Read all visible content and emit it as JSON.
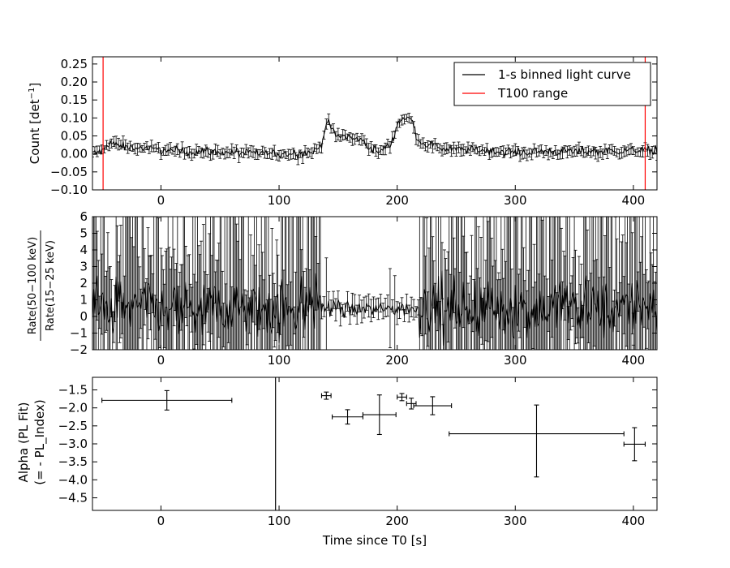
{
  "chart_data": [
    {
      "type": "line",
      "xlabel": "",
      "ylabel": "Count [det⁻¹]",
      "xlim": [
        -58,
        420
      ],
      "ylim": [
        -0.1,
        0.27
      ],
      "x_ticks": [
        0,
        100,
        200,
        300,
        400
      ],
      "y_ticks": [
        -0.1,
        -0.05,
        0.0,
        0.05,
        0.1,
        0.15,
        0.2,
        0.25
      ],
      "y_tick_labels": [
        "−0.10",
        "−0.05",
        "0.00",
        "0.05",
        "0.10",
        "0.15",
        "0.20",
        "0.25"
      ],
      "legend_position": "top-right",
      "series": [
        {
          "name": "1-s binned light curve",
          "color": "#000000",
          "profile_x": [
            -58,
            -48,
            -45,
            -42,
            -30,
            0,
            100,
            130,
            136,
            140,
            143,
            148,
            155,
            165,
            170,
            178,
            185,
            195,
            200,
            204,
            212,
            218,
            222,
            240,
            300,
            420
          ],
          "profile_y": [
            0.0,
            0.01,
            0.03,
            0.03,
            0.02,
            0.01,
            0.0,
            0.005,
            0.03,
            0.085,
            0.08,
            0.05,
            0.05,
            0.04,
            0.04,
            0.015,
            0.005,
            0.03,
            0.08,
            0.1,
            0.095,
            0.04,
            0.03,
            0.015,
            0.005,
            0.01
          ],
          "typical_error": 0.013
        },
        {
          "name": "T100 range",
          "color": "#ff0000",
          "vlines": [
            -49,
            410
          ]
        }
      ]
    },
    {
      "type": "line",
      "xlabel": "",
      "ylabel": "Rate(50−100 keV) / Rate(15−25 keV)",
      "xlim": [
        -58,
        420
      ],
      "ylim": [
        -2,
        6
      ],
      "x_ticks": [
        0,
        100,
        200,
        300,
        400
      ],
      "y_ticks": [
        -2,
        -1,
        0,
        1,
        2,
        3,
        4,
        5,
        6
      ],
      "y_tick_labels": [
        "−2",
        "−1",
        "0",
        "1",
        "2",
        "3",
        "4",
        "5",
        "6"
      ],
      "series": [
        {
          "name": "",
          "quiet_region": [
            136,
            218
          ],
          "typical_value": 0.5
        }
      ]
    },
    {
      "type": "scatter",
      "xlabel": "Time since T0 [s]",
      "ylabel": "Alpha (PL Fit)\n(= - PL_Index)",
      "xlim": [
        -58,
        420
      ],
      "ylim": [
        -4.85,
        -1.15
      ],
      "x_ticks": [
        0,
        100,
        200,
        300,
        400
      ],
      "x_tick_labels": [
        "0",
        "100",
        "200",
        "300",
        "400"
      ],
      "y_ticks": [
        -4.5,
        -4.0,
        -3.5,
        -3.0,
        -2.5,
        -2.0,
        -1.5
      ],
      "y_tick_labels": [
        "−4.5",
        "−4.0",
        "−3.5",
        "−3.0",
        "−2.5",
        "−2.0",
        "−1.5"
      ],
      "vlines": [
        97
      ],
      "points": [
        {
          "x": 5,
          "xerr_lo": 55,
          "xerr_hi": 55,
          "y": -1.79,
          "yerr_lo": 0.27,
          "yerr_hi": 0.27
        },
        {
          "x": 140,
          "xerr_lo": 4,
          "xerr_hi": 4,
          "y": -1.66,
          "yerr_lo": 0.1,
          "yerr_hi": 0.1
        },
        {
          "x": 158,
          "xerr_lo": 13,
          "xerr_hi": 13,
          "y": -2.25,
          "yerr_lo": 0.2,
          "yerr_hi": 0.2
        },
        {
          "x": 185,
          "xerr_lo": 14,
          "xerr_hi": 14,
          "y": -2.19,
          "yerr_lo": 0.55,
          "yerr_hi": 0.55
        },
        {
          "x": 204,
          "xerr_lo": 4,
          "xerr_hi": 4,
          "y": -1.7,
          "yerr_lo": 0.1,
          "yerr_hi": 0.1
        },
        {
          "x": 212,
          "xerr_lo": 4,
          "xerr_hi": 4,
          "y": -1.88,
          "yerr_lo": 0.15,
          "yerr_hi": 0.15
        },
        {
          "x": 230,
          "xerr_lo": 16,
          "xerr_hi": 16,
          "y": -1.94,
          "yerr_lo": 0.25,
          "yerr_hi": 0.25
        },
        {
          "x": 318,
          "xerr_lo": 74,
          "xerr_hi": 74,
          "y": -2.72,
          "yerr_lo": 1.2,
          "yerr_hi": 0.8
        },
        {
          "x": 401,
          "xerr_lo": 9,
          "xerr_hi": 9,
          "y": -3.01,
          "yerr_lo": 0.46,
          "yerr_hi": 0.46
        }
      ]
    }
  ]
}
